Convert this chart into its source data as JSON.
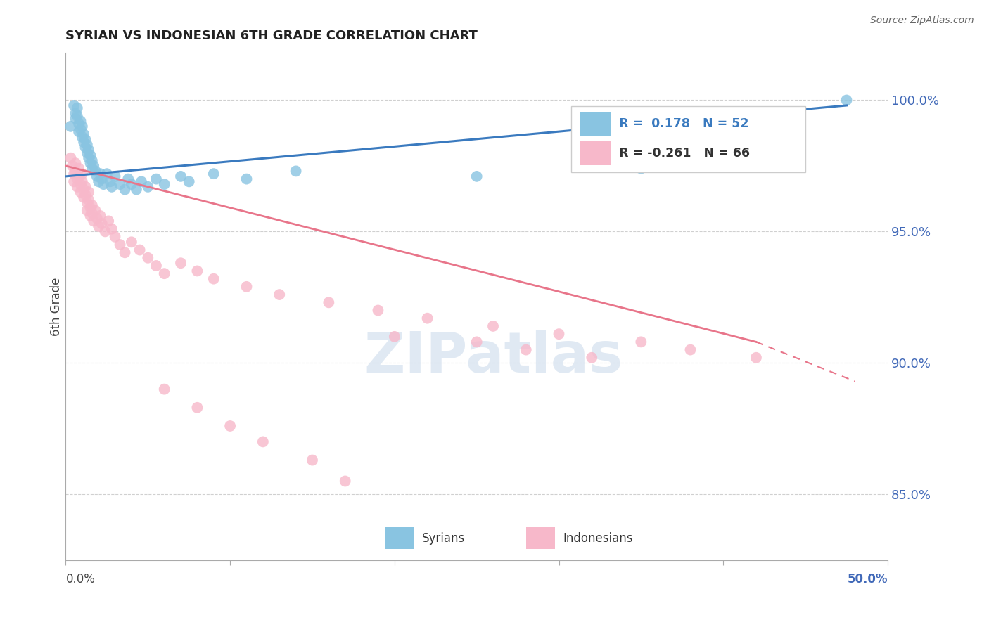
{
  "title": "SYRIAN VS INDONESIAN 6TH GRADE CORRELATION CHART",
  "source": "Source: ZipAtlas.com",
  "ylabel": "6th Grade",
  "ytick_labels": [
    "100.0%",
    "95.0%",
    "90.0%",
    "85.0%"
  ],
  "ytick_values": [
    1.0,
    0.95,
    0.9,
    0.85
  ],
  "xlim": [
    0.0,
    0.5
  ],
  "ylim": [
    0.825,
    1.018
  ],
  "legend_blue_R": 0.178,
  "legend_blue_N": 52,
  "legend_pink_R": -0.261,
  "legend_pink_N": 66,
  "blue_scatter_color": "#89c4e1",
  "pink_scatter_color": "#f7b8ca",
  "blue_line_color": "#3a7abf",
  "pink_line_color": "#e8758a",
  "watermark_text": "ZIPatlas",
  "syrians_x": [
    0.003,
    0.005,
    0.006,
    0.006,
    0.007,
    0.007,
    0.008,
    0.008,
    0.009,
    0.009,
    0.01,
    0.01,
    0.011,
    0.011,
    0.012,
    0.012,
    0.013,
    0.013,
    0.014,
    0.014,
    0.015,
    0.015,
    0.016,
    0.016,
    0.017,
    0.018,
    0.019,
    0.02,
    0.021,
    0.022,
    0.023,
    0.025,
    0.027,
    0.028,
    0.03,
    0.033,
    0.036,
    0.038,
    0.04,
    0.043,
    0.046,
    0.05,
    0.055,
    0.06,
    0.07,
    0.075,
    0.09,
    0.11,
    0.14,
    0.25,
    0.35,
    0.475
  ],
  "syrians_y": [
    0.99,
    0.998,
    0.995,
    0.993,
    0.997,
    0.994,
    0.991,
    0.988,
    0.992,
    0.989,
    0.99,
    0.986,
    0.987,
    0.984,
    0.985,
    0.982,
    0.983,
    0.98,
    0.981,
    0.978,
    0.979,
    0.976,
    0.977,
    0.974,
    0.975,
    0.973,
    0.971,
    0.969,
    0.972,
    0.97,
    0.968,
    0.972,
    0.969,
    0.967,
    0.971,
    0.968,
    0.966,
    0.97,
    0.968,
    0.966,
    0.969,
    0.967,
    0.97,
    0.968,
    0.971,
    0.969,
    0.972,
    0.97,
    0.973,
    0.971,
    0.974,
    1.0
  ],
  "indonesians_x": [
    0.003,
    0.004,
    0.005,
    0.005,
    0.006,
    0.006,
    0.007,
    0.007,
    0.008,
    0.008,
    0.009,
    0.009,
    0.01,
    0.01,
    0.011,
    0.011,
    0.012,
    0.012,
    0.013,
    0.013,
    0.014,
    0.014,
    0.015,
    0.015,
    0.016,
    0.016,
    0.017,
    0.018,
    0.019,
    0.02,
    0.021,
    0.022,
    0.024,
    0.026,
    0.028,
    0.03,
    0.033,
    0.036,
    0.04,
    0.045,
    0.05,
    0.055,
    0.06,
    0.07,
    0.08,
    0.09,
    0.11,
    0.13,
    0.16,
    0.19,
    0.22,
    0.26,
    0.3,
    0.35,
    0.38,
    0.42,
    0.25,
    0.28,
    0.32,
    0.2,
    0.17,
    0.15,
    0.12,
    0.1,
    0.08,
    0.06
  ],
  "indonesians_y": [
    0.978,
    0.975,
    0.972,
    0.969,
    0.976,
    0.973,
    0.97,
    0.967,
    0.974,
    0.971,
    0.968,
    0.965,
    0.972,
    0.969,
    0.966,
    0.963,
    0.967,
    0.964,
    0.961,
    0.958,
    0.965,
    0.962,
    0.959,
    0.956,
    0.96,
    0.957,
    0.954,
    0.958,
    0.955,
    0.952,
    0.956,
    0.953,
    0.95,
    0.954,
    0.951,
    0.948,
    0.945,
    0.942,
    0.946,
    0.943,
    0.94,
    0.937,
    0.934,
    0.938,
    0.935,
    0.932,
    0.929,
    0.926,
    0.923,
    0.92,
    0.917,
    0.914,
    0.911,
    0.908,
    0.905,
    0.902,
    0.908,
    0.905,
    0.902,
    0.91,
    0.855,
    0.863,
    0.87,
    0.876,
    0.883,
    0.89
  ]
}
